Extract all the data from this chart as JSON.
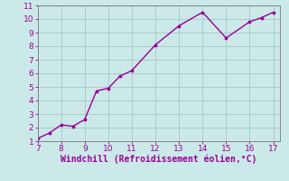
{
  "x": [
    7,
    7.5,
    8,
    8.5,
    9,
    9.5,
    10,
    10.5,
    11,
    12,
    13,
    14,
    15,
    16,
    16.5,
    17
  ],
  "y": [
    1.2,
    1.6,
    2.2,
    2.1,
    2.6,
    4.7,
    4.9,
    5.8,
    6.2,
    8.1,
    9.5,
    10.5,
    8.6,
    9.8,
    10.1,
    10.5
  ],
  "line_color": "#990099",
  "marker_color": "#990099",
  "bg_color": "#cce9e9",
  "grid_color": "#aacccc",
  "axis_color": "#777777",
  "tick_color": "#990099",
  "xlabel": "Windchill (Refroidissement éolien,°C)",
  "xlabel_color": "#990099",
  "xlim": [
    7,
    17.3
  ],
  "ylim": [
    1,
    11
  ],
  "xticks": [
    7,
    8,
    9,
    10,
    11,
    12,
    13,
    14,
    15,
    16,
    17
  ],
  "yticks": [
    1,
    2,
    3,
    4,
    5,
    6,
    7,
    8,
    9,
    10,
    11
  ],
  "xlabel_fontsize": 7.0,
  "tick_fontsize": 6.5,
  "linewidth": 1.0,
  "markersize": 3.5
}
